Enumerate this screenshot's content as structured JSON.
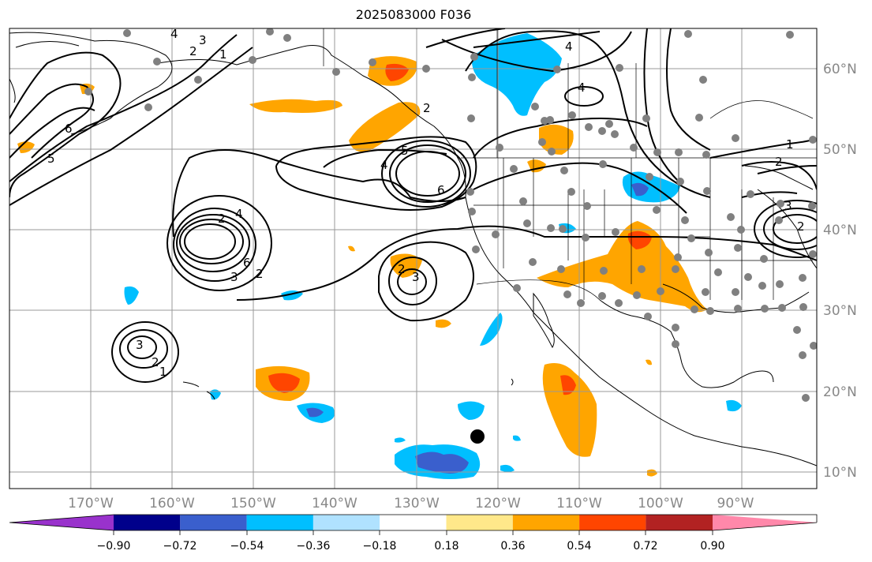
{
  "title": "2025083000 F036",
  "map": {
    "lon_labels": [
      "170°W",
      "160°W",
      "150°W",
      "140°W",
      "130°W",
      "120°W",
      "110°W",
      "100°W",
      "90°W"
    ],
    "lat_labels": [
      "60°N",
      "50°N",
      "40°N",
      "30°N",
      "20°N",
      "10°N"
    ],
    "contour_labels": [
      "4",
      "3",
      "2",
      "1",
      "6",
      "5",
      "4",
      "2",
      "4",
      "2",
      "6",
      "5",
      "4",
      "6",
      "3",
      "2",
      "2",
      "3",
      "3",
      "2",
      "1",
      "1",
      "2",
      "3",
      "2"
    ]
  },
  "colorbar": {
    "ticks": [
      "−0.90",
      "−0.72",
      "−0.54",
      "−0.36",
      "−0.18",
      "0.18",
      "0.36",
      "0.54",
      "0.72",
      "0.90"
    ],
    "colors": [
      "#9932cc",
      "#00008b",
      "#3a5fcd",
      "#00bfff",
      "#b0e2ff",
      "#ffffff",
      "#ffe88a",
      "#ffa500",
      "#ff4500",
      "#b22222",
      "#ff88aa"
    ]
  }
}
